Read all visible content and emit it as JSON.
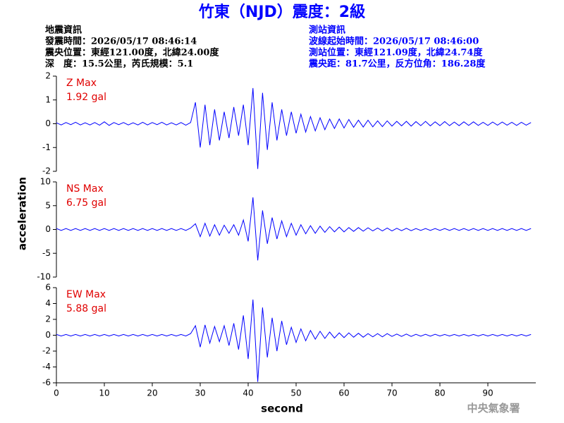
{
  "header": {
    "title": "竹東（NJD）震度：2級",
    "left": [
      "地震資訊",
      "發震時間：2026/05/17 08:46:14",
      "震央位置：東經121.00度，北緯24.00度",
      "深　度：15.5公里，芮氏規模：5.1"
    ],
    "right": [
      "測站資訊",
      "波線起始時間：2026/05/17 08:46:00",
      "測站位置：東經121.09度，北緯24.74度",
      "震央距：81.7公里，反方位角：186.28度"
    ],
    "footer": "中央氣象署"
  },
  "chart_data": {
    "type": "line",
    "ylabel": "acceleration",
    "xlabel": "second",
    "color": "#0000ff",
    "xlim": [
      0,
      100
    ],
    "xticks": [
      0,
      10,
      20,
      30,
      40,
      50,
      60,
      70,
      80,
      90
    ],
    "x": [
      0,
      1,
      2,
      3,
      4,
      5,
      6,
      7,
      8,
      9,
      10,
      11,
      12,
      13,
      14,
      15,
      16,
      17,
      18,
      19,
      20,
      21,
      22,
      23,
      24,
      25,
      26,
      27,
      28,
      29,
      30,
      31,
      32,
      33,
      34,
      35,
      36,
      37,
      38,
      39,
      40,
      41,
      42,
      43,
      44,
      45,
      46,
      47,
      48,
      49,
      50,
      51,
      52,
      53,
      54,
      55,
      56,
      57,
      58,
      59,
      60,
      61,
      62,
      63,
      64,
      65,
      66,
      67,
      68,
      69,
      70,
      71,
      72,
      73,
      74,
      75,
      76,
      77,
      78,
      79,
      80,
      81,
      82,
      83,
      84,
      85,
      86,
      87,
      88,
      89,
      90,
      91,
      92,
      93,
      94,
      95,
      96,
      97,
      98,
      99
    ],
    "panels": [
      {
        "annotation": "Z Max",
        "max_label": "1.92 gal",
        "ylim": [
          -2,
          2
        ],
        "yticks": [
          -2,
          -1,
          0,
          1,
          2
        ],
        "values": [
          0.04,
          -0.05,
          0.05,
          -0.04,
          0.06,
          -0.05,
          0.04,
          -0.05,
          0.05,
          -0.06,
          0.08,
          -0.07,
          0.05,
          -0.04,
          0.05,
          -0.05,
          0.04,
          -0.05,
          0.06,
          -0.05,
          0.05,
          -0.04,
          0.06,
          -0.05,
          0.04,
          -0.05,
          0.05,
          -0.06,
          0.05,
          0.9,
          -1.0,
          0.8,
          -0.9,
          0.6,
          -0.7,
          0.5,
          -0.6,
          0.7,
          -0.5,
          0.8,
          -0.9,
          1.5,
          -1.9,
          1.3,
          -1.1,
          0.9,
          -0.7,
          0.6,
          -0.5,
          0.5,
          -0.4,
          0.4,
          -0.35,
          0.3,
          -0.3,
          0.25,
          -0.25,
          0.2,
          -0.2,
          0.2,
          -0.18,
          0.18,
          -0.15,
          0.15,
          -0.14,
          0.15,
          -0.13,
          0.12,
          -0.12,
          0.12,
          -0.1,
          0.1,
          -0.09,
          0.1,
          -0.1,
          0.09,
          -0.08,
          0.1,
          -0.09,
          0.08,
          -0.08,
          0.09,
          -0.08,
          0.07,
          -0.08,
          0.08,
          -0.07,
          0.08,
          -0.07,
          0.06,
          -0.07,
          0.07,
          -0.06,
          0.07,
          -0.06,
          0.06,
          -0.07,
          0.06,
          -0.06,
          0.05
        ]
      },
      {
        "annotation": "NS Max",
        "max_label": "6.75 gal",
        "ylim": [
          -10,
          10
        ],
        "yticks": [
          -10,
          -5,
          0,
          5,
          10
        ],
        "values": [
          0.2,
          -0.2,
          0.2,
          -0.2,
          0.2,
          -0.2,
          0.2,
          -0.2,
          0.2,
          -0.2,
          0.2,
          -0.2,
          0.2,
          -0.2,
          0.2,
          -0.2,
          0.2,
          -0.2,
          0.2,
          -0.2,
          0.2,
          -0.2,
          0.2,
          -0.2,
          0.2,
          -0.2,
          0.2,
          -0.2,
          0.3,
          1.2,
          -1.5,
          1.3,
          -1.4,
          1.0,
          -1.2,
          0.9,
          -0.8,
          1.0,
          -1.2,
          2.0,
          -2.5,
          6.75,
          -6.5,
          4.0,
          -3.0,
          2.5,
          -2.0,
          1.8,
          -1.5,
          1.3,
          -1.2,
          1.0,
          -0.9,
          0.8,
          -0.8,
          0.7,
          -0.6,
          0.6,
          -0.5,
          0.5,
          -0.5,
          0.4,
          -0.4,
          0.4,
          -0.35,
          0.35,
          -0.3,
          0.3,
          -0.3,
          0.3,
          -0.3,
          0.25,
          -0.25,
          0.25,
          -0.25,
          0.2,
          -0.2,
          0.2,
          -0.2,
          0.2,
          -0.2,
          0.2,
          -0.2,
          0.2,
          -0.2,
          0.2,
          -0.2,
          0.2,
          -0.2,
          0.2,
          -0.2,
          0.2,
          -0.2,
          0.2,
          -0.2,
          0.2,
          -0.2,
          0.2,
          -0.2,
          0.2
        ]
      },
      {
        "annotation": "EW Max",
        "max_label": "5.88 gal",
        "ylim": [
          -6,
          6
        ],
        "yticks": [
          -6,
          -4,
          -2,
          0,
          2,
          4,
          6
        ],
        "values": [
          0.1,
          -0.1,
          0.1,
          -0.1,
          0.1,
          -0.1,
          0.1,
          -0.1,
          0.1,
          -0.1,
          0.1,
          -0.1,
          0.1,
          -0.1,
          0.1,
          -0.1,
          0.1,
          -0.1,
          0.1,
          -0.1,
          0.1,
          -0.1,
          0.1,
          -0.1,
          0.1,
          -0.1,
          0.1,
          -0.1,
          0.2,
          1.2,
          -1.5,
          1.3,
          -1.0,
          1.1,
          -0.8,
          1.2,
          -1.3,
          1.5,
          -1.8,
          2.5,
          -3.0,
          4.5,
          -5.88,
          3.5,
          -2.8,
          2.2,
          -2.0,
          1.8,
          -1.2,
          1.0,
          -0.9,
          0.8,
          -0.7,
          0.6,
          -0.5,
          0.5,
          -0.4,
          0.4,
          -0.35,
          0.3,
          -0.3,
          0.3,
          -0.25,
          0.25,
          -0.25,
          0.2,
          -0.2,
          0.2,
          -0.2,
          0.2,
          -0.15,
          0.15,
          -0.15,
          0.15,
          -0.15,
          0.12,
          -0.12,
          0.12,
          -0.12,
          0.12,
          -0.1,
          0.1,
          -0.1,
          0.1,
          -0.1,
          0.1,
          -0.1,
          0.1,
          -0.1,
          0.1,
          -0.1,
          0.1,
          -0.1,
          0.1,
          -0.1,
          0.1,
          -0.1,
          0.1,
          -0.1,
          0.1
        ]
      }
    ]
  }
}
